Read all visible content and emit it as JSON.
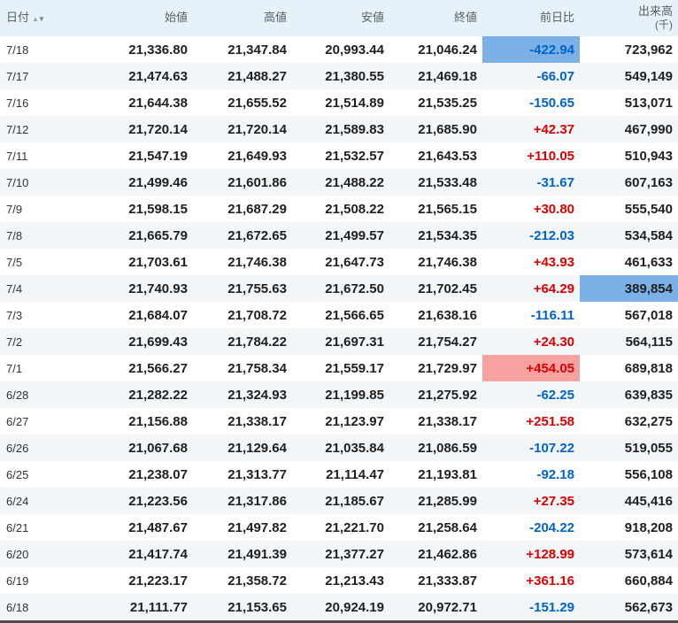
{
  "colors": {
    "positive_change": "#dd0000",
    "negative_change": "#0063cc",
    "highlight_blue": "#7cb1e8",
    "highlight_red": "#f7a1a1",
    "header_background": "#e7f1fa",
    "alternate_row_background": "#f2f6f9"
  },
  "table": {
    "columns": [
      {
        "key": "date",
        "label": "日付"
      },
      {
        "key": "open",
        "label": "始値"
      },
      {
        "key": "high",
        "label": "高値"
      },
      {
        "key": "low",
        "label": "安値"
      },
      {
        "key": "close",
        "label": "終値"
      },
      {
        "key": "change",
        "label": "前日比"
      },
      {
        "key": "volume",
        "label": "出来高",
        "sub": "(千)"
      }
    ],
    "sort_icons": {
      "up": "▲",
      "down": "▼"
    },
    "rows": [
      {
        "date": "7/18",
        "open": "21,336.80",
        "high": "21,347.84",
        "low": "20,993.44",
        "close": "21,046.24",
        "change": "-422.94",
        "dir": "down",
        "change_hl": "blue",
        "volume": "723,962",
        "volume_hl": null
      },
      {
        "date": "7/17",
        "open": "21,474.63",
        "high": "21,488.27",
        "low": "21,380.55",
        "close": "21,469.18",
        "change": "-66.07",
        "dir": "down",
        "change_hl": null,
        "volume": "549,149",
        "volume_hl": null
      },
      {
        "date": "7/16",
        "open": "21,644.38",
        "high": "21,655.52",
        "low": "21,514.89",
        "close": "21,535.25",
        "change": "-150.65",
        "dir": "down",
        "change_hl": null,
        "volume": "513,071",
        "volume_hl": null
      },
      {
        "date": "7/12",
        "open": "21,720.14",
        "high": "21,720.14",
        "low": "21,589.83",
        "close": "21,685.90",
        "change": "+42.37",
        "dir": "up",
        "change_hl": null,
        "volume": "467,990",
        "volume_hl": null
      },
      {
        "date": "7/11",
        "open": "21,547.19",
        "high": "21,649.93",
        "low": "21,532.57",
        "close": "21,643.53",
        "change": "+110.05",
        "dir": "up",
        "change_hl": null,
        "volume": "510,943",
        "volume_hl": null
      },
      {
        "date": "7/10",
        "open": "21,499.46",
        "high": "21,601.86",
        "low": "21,488.22",
        "close": "21,533.48",
        "change": "-31.67",
        "dir": "down",
        "change_hl": null,
        "volume": "607,163",
        "volume_hl": null
      },
      {
        "date": "7/9",
        "open": "21,598.15",
        "high": "21,687.29",
        "low": "21,508.22",
        "close": "21,565.15",
        "change": "+30.80",
        "dir": "up",
        "change_hl": null,
        "volume": "555,540",
        "volume_hl": null
      },
      {
        "date": "7/8",
        "open": "21,665.79",
        "high": "21,672.65",
        "low": "21,499.57",
        "close": "21,534.35",
        "change": "-212.03",
        "dir": "down",
        "change_hl": null,
        "volume": "534,584",
        "volume_hl": null
      },
      {
        "date": "7/5",
        "open": "21,703.61",
        "high": "21,746.38",
        "low": "21,647.73",
        "close": "21,746.38",
        "change": "+43.93",
        "dir": "up",
        "change_hl": null,
        "volume": "461,633",
        "volume_hl": null
      },
      {
        "date": "7/4",
        "open": "21,740.93",
        "high": "21,755.63",
        "low": "21,672.50",
        "close": "21,702.45",
        "change": "+64.29",
        "dir": "up",
        "change_hl": null,
        "volume": "389,854",
        "volume_hl": "blue"
      },
      {
        "date": "7/3",
        "open": "21,684.07",
        "high": "21,708.72",
        "low": "21,566.65",
        "close": "21,638.16",
        "change": "-116.11",
        "dir": "down",
        "change_hl": null,
        "volume": "567,018",
        "volume_hl": null
      },
      {
        "date": "7/2",
        "open": "21,699.43",
        "high": "21,784.22",
        "low": "21,697.31",
        "close": "21,754.27",
        "change": "+24.30",
        "dir": "up",
        "change_hl": null,
        "volume": "564,115",
        "volume_hl": null
      },
      {
        "date": "7/1",
        "open": "21,566.27",
        "high": "21,758.34",
        "low": "21,559.17",
        "close": "21,729.97",
        "change": "+454.05",
        "dir": "up",
        "change_hl": "red",
        "volume": "689,818",
        "volume_hl": null
      },
      {
        "date": "6/28",
        "open": "21,282.22",
        "high": "21,324.93",
        "low": "21,199.85",
        "close": "21,275.92",
        "change": "-62.25",
        "dir": "down",
        "change_hl": null,
        "volume": "639,835",
        "volume_hl": null
      },
      {
        "date": "6/27",
        "open": "21,156.88",
        "high": "21,338.17",
        "low": "21,123.97",
        "close": "21,338.17",
        "change": "+251.58",
        "dir": "up",
        "change_hl": null,
        "volume": "632,275",
        "volume_hl": null
      },
      {
        "date": "6/26",
        "open": "21,067.68",
        "high": "21,129.64",
        "low": "21,035.84",
        "close": "21,086.59",
        "change": "-107.22",
        "dir": "down",
        "change_hl": null,
        "volume": "519,055",
        "volume_hl": null
      },
      {
        "date": "6/25",
        "open": "21,238.07",
        "high": "21,313.77",
        "low": "21,114.47",
        "close": "21,193.81",
        "change": "-92.18",
        "dir": "down",
        "change_hl": null,
        "volume": "556,108",
        "volume_hl": null
      },
      {
        "date": "6/24",
        "open": "21,223.56",
        "high": "21,317.86",
        "low": "21,185.67",
        "close": "21,285.99",
        "change": "+27.35",
        "dir": "up",
        "change_hl": null,
        "volume": "445,416",
        "volume_hl": null
      },
      {
        "date": "6/21",
        "open": "21,487.67",
        "high": "21,497.82",
        "low": "21,221.70",
        "close": "21,258.64",
        "change": "-204.22",
        "dir": "down",
        "change_hl": null,
        "volume": "918,208",
        "volume_hl": null
      },
      {
        "date": "6/20",
        "open": "21,417.74",
        "high": "21,491.39",
        "low": "21,377.27",
        "close": "21,462.86",
        "change": "+128.99",
        "dir": "up",
        "change_hl": null,
        "volume": "573,614",
        "volume_hl": null
      },
      {
        "date": "6/19",
        "open": "21,223.17",
        "high": "21,358.72",
        "low": "21,213.43",
        "close": "21,333.87",
        "change": "+361.16",
        "dir": "up",
        "change_hl": null,
        "volume": "660,884",
        "volume_hl": null
      },
      {
        "date": "6/18",
        "open": "21,111.77",
        "high": "21,153.65",
        "low": "20,924.19",
        "close": "20,972.71",
        "change": "-151.29",
        "dir": "down",
        "change_hl": null,
        "volume": "562,673",
        "volume_hl": null
      }
    ]
  }
}
